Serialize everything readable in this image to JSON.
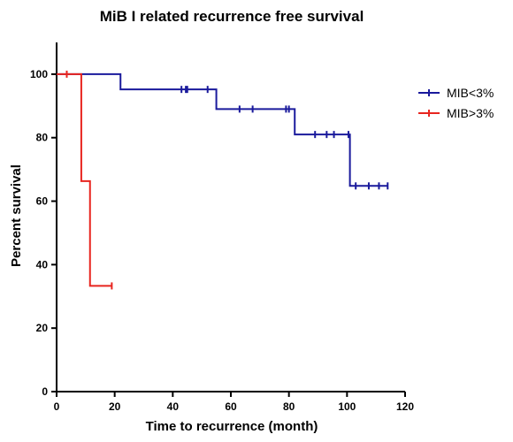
{
  "chart_data": {
    "type": "line",
    "title": "MiB I related recurrence free survival",
    "xlabel": "Time to recurrence (month)",
    "ylabel": "Percent survival",
    "xlim": [
      0,
      120
    ],
    "ylim": [
      0,
      110
    ],
    "xticks": [
      0,
      20,
      40,
      60,
      80,
      100,
      120
    ],
    "yticks": [
      0,
      20,
      40,
      60,
      80,
      100
    ],
    "grid": false,
    "legend_position": "right",
    "series": [
      {
        "name": "MIB<3%",
        "color": "#1a1a9c",
        "steps": [
          [
            0,
            100
          ],
          [
            22,
            100
          ],
          [
            22,
            95.2
          ],
          [
            55,
            95.2
          ],
          [
            55,
            89
          ],
          [
            82,
            89
          ],
          [
            82,
            81
          ],
          [
            101,
            81
          ],
          [
            101,
            64.8
          ],
          [
            114,
            64.8
          ]
        ],
        "censored": [
          [
            43,
            95.2
          ],
          [
            44.5,
            95.2
          ],
          [
            45,
            95.2
          ],
          [
            52,
            95.2
          ],
          [
            63,
            89
          ],
          [
            67.5,
            89
          ],
          [
            79,
            89
          ],
          [
            80,
            89
          ],
          [
            89,
            81
          ],
          [
            93,
            81
          ],
          [
            95.5,
            81
          ],
          [
            100.5,
            81
          ],
          [
            103,
            64.8
          ],
          [
            107.5,
            64.8
          ],
          [
            111,
            64.8
          ],
          [
            114,
            64.8
          ]
        ]
      },
      {
        "name": "MIB>3%",
        "color": "#e8251f",
        "steps": [
          [
            0,
            100
          ],
          [
            8.5,
            100
          ],
          [
            8.5,
            66.3
          ],
          [
            11.5,
            66.3
          ],
          [
            11.5,
            33.3
          ],
          [
            19,
            33.3
          ]
        ],
        "censored": [
          [
            3.5,
            100
          ],
          [
            19,
            33.3
          ]
        ]
      }
    ]
  }
}
